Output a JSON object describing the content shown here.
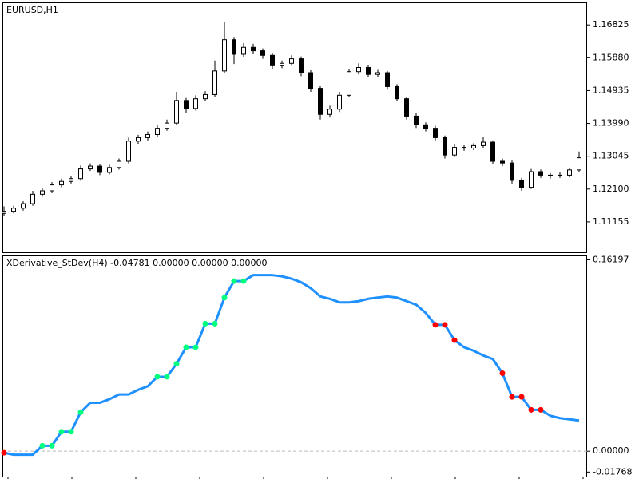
{
  "chart_data": [
    {
      "type": "candlestick",
      "title": "EURUSD,H1",
      "open": [
        1.114,
        1.1146,
        1.1155,
        1.1168,
        1.1195,
        1.1205,
        1.1222,
        1.1232,
        1.124,
        1.1268,
        1.1276,
        1.1258,
        1.1272,
        1.129,
        1.1348,
        1.1358,
        1.1367,
        1.1385,
        1.14,
        1.1465,
        1.1442,
        1.147,
        1.1482,
        1.155,
        1.164,
        1.1598,
        1.1618,
        1.1608,
        1.1595,
        1.1565,
        1.1572,
        1.1585,
        1.1545,
        1.15,
        1.1425,
        1.144,
        1.148,
        1.1548,
        1.156,
        1.154,
        1.1545,
        1.1505,
        1.147,
        1.142,
        1.1395,
        1.1385,
        1.1358,
        1.1308,
        1.133,
        1.1328,
        1.1335,
        1.1345,
        1.129,
        1.1285,
        1.1235,
        1.1215,
        1.126,
        1.125,
        1.1248,
        1.125,
        1.1265
      ],
      "high": [
        1.116,
        1.1162,
        1.1175,
        1.1205,
        1.1212,
        1.123,
        1.124,
        1.1248,
        1.1278,
        1.1284,
        1.1282,
        1.128,
        1.1298,
        1.1358,
        1.1366,
        1.1376,
        1.1394,
        1.141,
        1.149,
        1.1472,
        1.148,
        1.1492,
        1.158,
        1.1692,
        1.1648,
        1.163,
        1.1628,
        1.1615,
        1.1602,
        1.158,
        1.1595,
        1.1592,
        1.1552,
        1.1506,
        1.145,
        1.149,
        1.1556,
        1.1572,
        1.1566,
        1.1553,
        1.155,
        1.1512,
        1.1476,
        1.1428,
        1.1402,
        1.1392,
        1.1364,
        1.1338,
        1.1336,
        1.1342,
        1.136,
        1.135,
        1.1298,
        1.1292,
        1.1242,
        1.1268,
        1.1266,
        1.1256,
        1.1258,
        1.1272,
        1.1318
      ],
      "low": [
        1.1132,
        1.114,
        1.1148,
        1.1162,
        1.1188,
        1.1198,
        1.1215,
        1.1226,
        1.1234,
        1.1262,
        1.125,
        1.1252,
        1.1266,
        1.1284,
        1.134,
        1.135,
        1.136,
        1.1378,
        1.1395,
        1.143,
        1.1436,
        1.1462,
        1.1476,
        1.1545,
        1.157,
        1.159,
        1.1598,
        1.1585,
        1.1555,
        1.1558,
        1.1565,
        1.1535,
        1.149,
        1.141,
        1.1416,
        1.1432,
        1.1474,
        1.154,
        1.1532,
        1.1533,
        1.1496,
        1.1462,
        1.141,
        1.1386,
        1.1376,
        1.135,
        1.1298,
        1.1302,
        1.132,
        1.1322,
        1.1328,
        1.1282,
        1.1276,
        1.1226,
        1.1205,
        1.121,
        1.1242,
        1.124,
        1.1242,
        1.1244,
        1.1258
      ],
      "close": [
        1.1146,
        1.1155,
        1.1168,
        1.1195,
        1.1205,
        1.1222,
        1.1232,
        1.124,
        1.1268,
        1.1276,
        1.1258,
        1.1272,
        1.129,
        1.1348,
        1.1358,
        1.1367,
        1.1385,
        1.14,
        1.1465,
        1.1442,
        1.147,
        1.1482,
        1.155,
        1.164,
        1.1598,
        1.1618,
        1.1608,
        1.1595,
        1.1565,
        1.1572,
        1.1585,
        1.1545,
        1.15,
        1.1425,
        1.144,
        1.148,
        1.1548,
        1.156,
        1.154,
        1.1545,
        1.1505,
        1.147,
        1.142,
        1.1395,
        1.1385,
        1.1358,
        1.1308,
        1.133,
        1.1328,
        1.1335,
        1.1345,
        1.129,
        1.1285,
        1.1235,
        1.1215,
        1.126,
        1.125,
        1.1248,
        1.125,
        1.1265,
        1.13
      ],
      "up_color": "#ffffff",
      "down_color": "#000000",
      "line_color": "#000000",
      "ylim": [
        1.1028,
        1.1745
      ],
      "yticks": [
        1.16825,
        {
          "value": 1.1588,
          "label": "1.15880"
        },
        1.14935,
        {
          "value": 1.1399,
          "label": "1.13990"
        },
        1.13045,
        {
          "value": 1.121,
          "label": "1.12100"
        },
        1.11155
      ]
    },
    {
      "type": "line",
      "title": "XDerivative_StDev(H4) -0.04781 0.00000 0.00000 0.00000",
      "values": [
        -0.0013,
        -0.003,
        -0.003,
        -0.003,
        0.0046,
        0.0046,
        0.0165,
        0.0165,
        0.033,
        0.041,
        0.041,
        0.044,
        0.048,
        0.048,
        0.052,
        0.055,
        0.063,
        0.063,
        0.074,
        0.088,
        0.088,
        0.108,
        0.108,
        0.13,
        0.144,
        0.144,
        0.149,
        0.149,
        0.149,
        0.148,
        0.146,
        0.143,
        0.138,
        0.131,
        0.129,
        0.126,
        0.126,
        0.127,
        0.129,
        0.13,
        0.131,
        0.13,
        0.127,
        0.124,
        0.117,
        0.107,
        0.107,
        0.094,
        0.088,
        0.085,
        0.081,
        0.078,
        0.066,
        0.046,
        0.046,
        0.035,
        0.035,
        0.03,
        0.028,
        0.027,
        0.026
      ],
      "color": "#1e90ff",
      "point_colors": [
        "#ff0000",
        null,
        null,
        null,
        "#00ff7f",
        "#00ff7f",
        "#00ff7f",
        "#00ff7f",
        "#00ff7f",
        null,
        null,
        null,
        null,
        null,
        null,
        null,
        "#00ff7f",
        "#00ff7f",
        "#00ff7f",
        "#00ff7f",
        "#00ff7f",
        "#00ff7f",
        "#00ff7f",
        "#00ff7f",
        "#00ff7f",
        "#00ff7f",
        null,
        null,
        null,
        null,
        null,
        null,
        null,
        null,
        null,
        null,
        null,
        null,
        null,
        null,
        null,
        null,
        null,
        null,
        null,
        "#ff0000",
        "#ff0000",
        "#ff0000",
        null,
        null,
        null,
        null,
        "#ff0000",
        "#ff0000",
        "#ff0000",
        "#ff0000",
        "#ff0000",
        null,
        null,
        null,
        null
      ],
      "levels": [
        0
      ],
      "ylim": [
        -0.0215,
        0.165
      ],
      "yticks": [
        0.16197,
        {
          "value": 0,
          "label": "0.00000"
        },
        -0.01768
      ]
    }
  ]
}
